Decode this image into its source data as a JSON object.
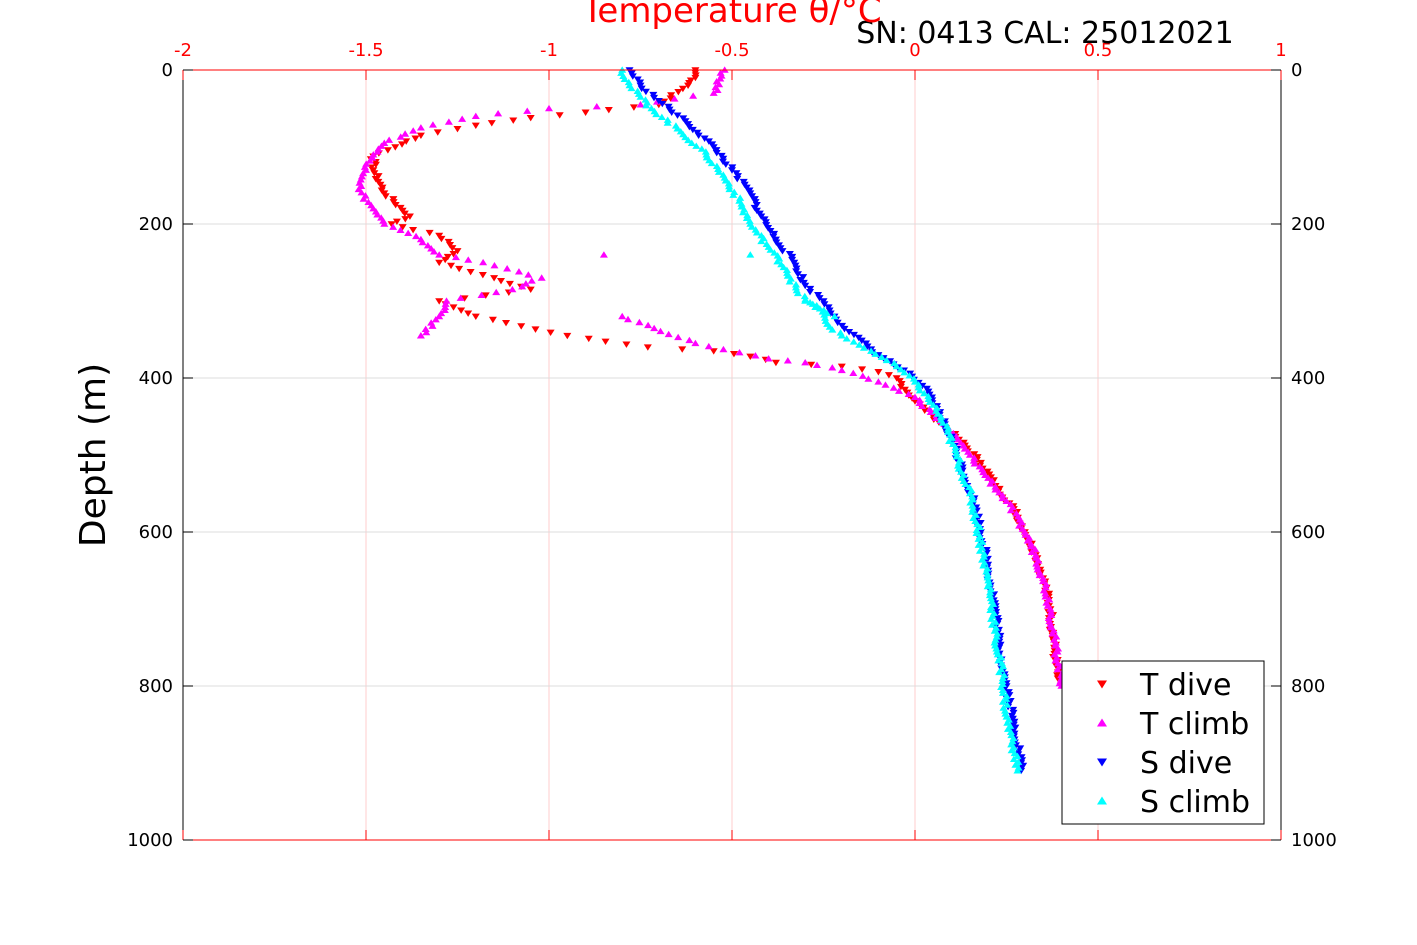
{
  "chart_data": {
    "type": "scatter",
    "title": "SN: 0413  CAL: 25012021",
    "xlabel": "Temperature θ/°C",
    "ylabel": "Depth (m)",
    "xlim": [
      -2,
      1
    ],
    "ylim": [
      0,
      1000
    ],
    "y_reversed": true,
    "xticks": [
      "-2",
      "-1.5",
      "-1",
      "-0.5",
      "0",
      "0.5",
      "1"
    ],
    "xtick_values": [
      -2,
      -1.5,
      -1,
      -0.5,
      0,
      0.5,
      1
    ],
    "yticks": [
      "0",
      "200",
      "400",
      "600",
      "800",
      "1000"
    ],
    "ytick_values": [
      0,
      200,
      400,
      600,
      800,
      1000
    ],
    "grid": true,
    "legend_position": "bottom-right",
    "series": [
      {
        "name": "T dive",
        "marker": "triangle-down",
        "color": "#ff0000",
        "points": [
          [
            -0.6,
            0
          ],
          [
            -0.6,
            10
          ],
          [
            -0.62,
            20
          ],
          [
            -0.7,
            45
          ],
          [
            -0.9,
            55
          ],
          [
            -1.05,
            62
          ],
          [
            -1.2,
            72
          ],
          [
            -1.35,
            85
          ],
          [
            -1.42,
            100
          ],
          [
            -1.48,
            112
          ],
          [
            -1.48,
            130
          ],
          [
            -1.45,
            160
          ],
          [
            -1.38,
            190
          ],
          [
            -1.43,
            200
          ],
          [
            -1.3,
            215
          ],
          [
            -1.25,
            235
          ],
          [
            -1.3,
            250
          ],
          [
            -1.15,
            270
          ],
          [
            -1.05,
            285
          ],
          [
            -1.3,
            300
          ],
          [
            -1.2,
            320
          ],
          [
            -0.95,
            345
          ],
          [
            -0.73,
            360
          ],
          [
            -0.55,
            365
          ],
          [
            -0.45,
            372
          ],
          [
            -0.38,
            380
          ],
          [
            -0.2,
            385
          ],
          [
            -0.1,
            392
          ],
          [
            -0.05,
            400
          ],
          [
            0.0,
            430
          ],
          [
            0.05,
            450
          ],
          [
            0.12,
            480
          ],
          [
            0.18,
            510
          ],
          [
            0.22,
            540
          ],
          [
            0.27,
            570
          ],
          [
            0.3,
            600
          ],
          [
            0.33,
            630
          ],
          [
            0.35,
            660
          ],
          [
            0.37,
            700
          ],
          [
            0.38,
            750
          ],
          [
            0.39,
            790
          ]
        ]
      },
      {
        "name": "T climb",
        "marker": "triangle-up",
        "color": "#ff00ff",
        "points": [
          [
            -0.52,
            0
          ],
          [
            -0.55,
            30
          ],
          [
            -0.75,
            45
          ],
          [
            -1.0,
            50
          ],
          [
            -1.2,
            60
          ],
          [
            -1.35,
            75
          ],
          [
            -1.45,
            95
          ],
          [
            -1.48,
            110
          ],
          [
            -1.5,
            130
          ],
          [
            -1.52,
            155
          ],
          [
            -1.48,
            180
          ],
          [
            -1.45,
            200
          ],
          [
            -1.35,
            220
          ],
          [
            -1.3,
            240
          ],
          [
            -1.18,
            250
          ],
          [
            -1.02,
            270
          ],
          [
            -1.1,
            285
          ],
          [
            -1.28,
            300
          ],
          [
            -1.3,
            320
          ],
          [
            -1.35,
            345
          ],
          [
            -0.85,
            240
          ],
          [
            -0.8,
            320
          ],
          [
            -0.6,
            355
          ],
          [
            -0.4,
            375
          ],
          [
            -0.3,
            380
          ],
          [
            -0.2,
            390
          ],
          [
            -0.1,
            405
          ],
          [
            0.0,
            425
          ],
          [
            0.08,
            460
          ],
          [
            0.15,
            500
          ],
          [
            0.2,
            530
          ],
          [
            0.25,
            560
          ],
          [
            0.3,
            600
          ],
          [
            0.33,
            630
          ],
          [
            0.35,
            660
          ],
          [
            0.37,
            700
          ],
          [
            0.38,
            740
          ],
          [
            0.4,
            790
          ],
          [
            0.4,
            800
          ]
        ]
      },
      {
        "name": "S dive",
        "marker": "triangle-down",
        "color": "#0000ff",
        "points": [
          [
            -0.78,
            0
          ],
          [
            -0.75,
            20
          ],
          [
            -0.7,
            40
          ],
          [
            -0.62,
            70
          ],
          [
            -0.55,
            100
          ],
          [
            -0.5,
            130
          ],
          [
            -0.45,
            160
          ],
          [
            -0.42,
            190
          ],
          [
            -0.38,
            220
          ],
          [
            -0.33,
            250
          ],
          [
            -0.3,
            280
          ],
          [
            -0.25,
            300
          ],
          [
            -0.22,
            320
          ],
          [
            -0.18,
            340
          ],
          [
            -0.1,
            370
          ],
          [
            -0.03,
            390
          ],
          [
            0.02,
            410
          ],
          [
            0.06,
            440
          ],
          [
            0.1,
            480
          ],
          [
            0.13,
            520
          ],
          [
            0.16,
            560
          ],
          [
            0.18,
            600
          ],
          [
            0.2,
            650
          ],
          [
            0.22,
            700
          ],
          [
            0.23,
            750
          ],
          [
            0.25,
            800
          ],
          [
            0.27,
            850
          ],
          [
            0.29,
            900
          ],
          [
            0.29,
            910
          ]
        ]
      },
      {
        "name": "S climb",
        "marker": "triangle-up",
        "color": "#00ffff",
        "points": [
          [
            -0.8,
            0
          ],
          [
            -0.78,
            20
          ],
          [
            -0.72,
            50
          ],
          [
            -0.64,
            80
          ],
          [
            -0.57,
            110
          ],
          [
            -0.52,
            140
          ],
          [
            -0.48,
            170
          ],
          [
            -0.45,
            200
          ],
          [
            -0.4,
            230
          ],
          [
            -0.35,
            260
          ],
          [
            -0.32,
            290
          ],
          [
            -0.26,
            310
          ],
          [
            -0.24,
            330
          ],
          [
            -0.2,
            345
          ],
          [
            -0.12,
            365
          ],
          [
            -0.05,
            385
          ],
          [
            0.0,
            405
          ],
          [
            0.05,
            435
          ],
          [
            0.09,
            470
          ],
          [
            0.12,
            510
          ],
          [
            0.15,
            550
          ],
          [
            0.17,
            590
          ],
          [
            0.19,
            640
          ],
          [
            0.21,
            690
          ],
          [
            0.22,
            740
          ],
          [
            0.24,
            790
          ],
          [
            0.25,
            840
          ],
          [
            0.27,
            880
          ],
          [
            0.28,
            910
          ],
          [
            -0.45,
            240
          ],
          [
            -0.22,
            320
          ],
          [
            -0.3,
            300
          ]
        ]
      }
    ]
  }
}
